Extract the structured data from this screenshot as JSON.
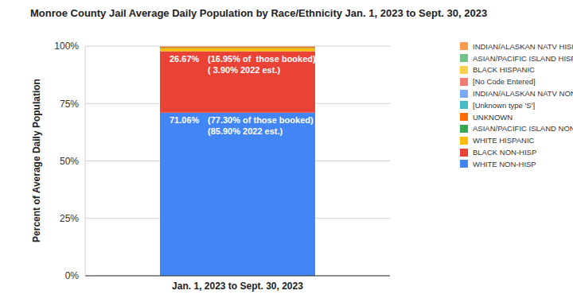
{
  "chart_data": {
    "type": "bar",
    "title": "Monroe County Jail Average Daily Population by Race/Ethnicity Jan. 1, 2023 to Sept. 30, 2023",
    "y_label": "Percent of Average Daily Population",
    "categories": [
      "Jan. 1, 2023 to Sept. 30, 2023"
    ],
    "stacked": true,
    "grid": true,
    "legend": "right",
    "ylim": [
      0,
      100
    ],
    "yticks": [
      {
        "value": 0,
        "label": "0%"
      },
      {
        "value": 25,
        "label": "25%"
      },
      {
        "value": 50,
        "label": "50%"
      },
      {
        "value": 75,
        "label": "75%"
      },
      {
        "value": 100,
        "label": "100%"
      }
    ],
    "series": [
      {
        "name": "WHITE NON-HISP",
        "color": "#4285f4",
        "values": [
          71.06
        ],
        "value_labels": [
          "71.06%"
        ],
        "annotations": [
          "(77.30% of those booked)",
          "(85.90% 2022 est.)"
        ]
      },
      {
        "name": "BLACK NON-HISP",
        "color": "#ea4335",
        "values": [
          26.67
        ],
        "value_labels": [
          "26.67%"
        ],
        "annotations": [
          "(16.95% of  those booked)",
          "( 3.90% 2022 est.)"
        ]
      },
      {
        "name": "WHITE HISPANIC",
        "color": "#fbbc04",
        "values": [
          1.3
        ]
      },
      {
        "name": "ASIAN/PACIFIC ISLAND NON-HISP",
        "color": "#34a853",
        "values": [
          0.2
        ]
      },
      {
        "name": "UNKNOWN",
        "color": "#ff6d01",
        "values": [
          0.5
        ]
      },
      {
        "name": "[Unknown type 'S']",
        "color": "#46bdc6",
        "values": [
          0.05
        ]
      },
      {
        "name": "INDIAN/ALASKAN NATV NON-HISP",
        "color": "#7baaf7",
        "values": [
          0.05
        ]
      },
      {
        "name": "[No Code Entered]",
        "color": "#f07b72",
        "values": [
          0.05
        ]
      },
      {
        "name": "BLACK HISPANIC",
        "color": "#fcd04f",
        "values": [
          0.1
        ]
      },
      {
        "name": "ASIAN/PACIFIC ISLAND HISPANIC",
        "color": "#71c287",
        "values": [
          0.01
        ]
      },
      {
        "name": "INDIAN/ALASKAN NATV HISPANIC",
        "color": "#ff994d",
        "values": [
          0.01
        ]
      }
    ]
  }
}
